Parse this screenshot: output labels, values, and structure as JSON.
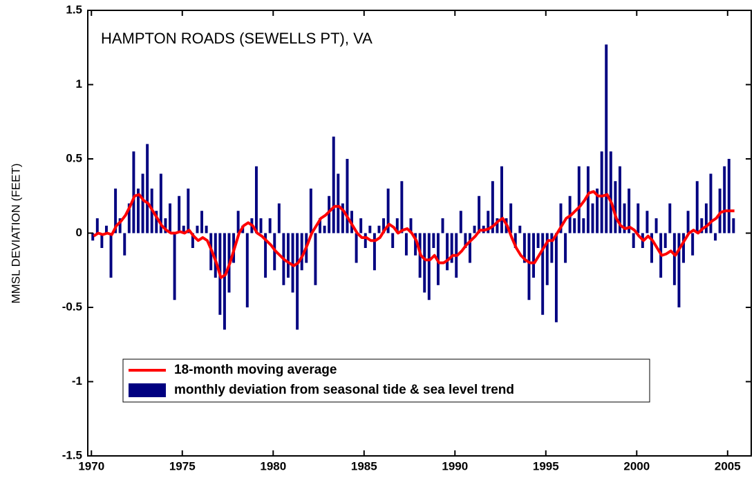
{
  "chart_data": {
    "type": "bar",
    "annotation": "HAMPTON ROADS (SEWELLS PT), VA",
    "y_label": "MMSL DEVIATION (FEET)",
    "x": [
      1970,
      1970.25,
      1970.5,
      1970.75,
      1971,
      1971.25,
      1971.5,
      1971.75,
      1972,
      1972.25,
      1972.5,
      1972.75,
      1973,
      1973.25,
      1973.5,
      1973.75,
      1974,
      1974.25,
      1974.5,
      1974.75,
      1975,
      1975.25,
      1975.5,
      1975.75,
      1976,
      1976.25,
      1976.5,
      1976.75,
      1977,
      1977.25,
      1977.5,
      1977.75,
      1978,
      1978.25,
      1978.5,
      1978.75,
      1979,
      1979.25,
      1979.5,
      1979.75,
      1980,
      1980.25,
      1980.5,
      1980.75,
      1981,
      1981.25,
      1981.5,
      1981.75,
      1982,
      1982.25,
      1982.5,
      1982.75,
      1983,
      1983.25,
      1983.5,
      1983.75,
      1984,
      1984.25,
      1984.5,
      1984.75,
      1985,
      1985.25,
      1985.5,
      1985.75,
      1986,
      1986.25,
      1986.5,
      1986.75,
      1987,
      1987.25,
      1987.5,
      1987.75,
      1988,
      1988.25,
      1988.5,
      1988.75,
      1989,
      1989.25,
      1989.5,
      1989.75,
      1990,
      1990.25,
      1990.5,
      1990.75,
      1991,
      1991.25,
      1991.5,
      1991.75,
      1992,
      1992.25,
      1992.5,
      1992.75,
      1993,
      1993.25,
      1993.5,
      1993.75,
      1994,
      1994.25,
      1994.5,
      1994.75,
      1995,
      1995.25,
      1995.5,
      1995.75,
      1996,
      1996.25,
      1996.5,
      1996.75,
      1997,
      1997.25,
      1997.5,
      1997.75,
      1998,
      1998.25,
      1998.5,
      1998.75,
      1999,
      1999.25,
      1999.5,
      1999.75,
      2000,
      2000.25,
      2000.5,
      2000.75,
      2001,
      2001.25,
      2001.5,
      2001.75,
      2002,
      2002.25,
      2002.5,
      2002.75,
      2003,
      2003.25,
      2003.5,
      2003.75,
      2004,
      2004.25,
      2004.5,
      2004.75,
      2005,
      2005.25
    ],
    "series": [
      {
        "name": "monthly deviation from seasonal tide & sea level trend",
        "type": "bar",
        "color": "#000080",
        "values": [
          -0.05,
          0.1,
          -0.1,
          0.05,
          -0.3,
          0.3,
          0.1,
          -0.15,
          0.2,
          0.55,
          0.3,
          0.4,
          0.6,
          0.3,
          0.15,
          0.4,
          0.1,
          0.2,
          -0.45,
          0.25,
          0.05,
          0.3,
          -0.1,
          0.05,
          0.15,
          0.05,
          -0.25,
          -0.3,
          -0.55,
          -0.65,
          -0.4,
          -0.2,
          0.15,
          0.05,
          -0.5,
          0.1,
          0.45,
          0.1,
          -0.3,
          0.1,
          -0.25,
          0.2,
          -0.35,
          -0.3,
          -0.4,
          -0.65,
          -0.25,
          -0.2,
          0.3,
          -0.35,
          0.1,
          0.05,
          0.25,
          0.65,
          0.4,
          0.2,
          0.5,
          0.15,
          -0.2,
          0.1,
          -0.1,
          0.05,
          -0.25,
          0.05,
          0.1,
          0.3,
          -0.1,
          0.1,
          0.35,
          -0.15,
          0.1,
          -0.15,
          -0.3,
          -0.4,
          -0.45,
          -0.1,
          -0.35,
          0.1,
          -0.25,
          -0.2,
          -0.3,
          0.15,
          -0.1,
          -0.2,
          0.05,
          0.25,
          0.05,
          0.15,
          0.35,
          0.1,
          0.45,
          0.1,
          0.2,
          -0.1,
          0.05,
          -0.2,
          -0.45,
          -0.3,
          -0.1,
          -0.55,
          -0.35,
          -0.2,
          -0.6,
          0.2,
          -0.2,
          0.25,
          0.1,
          0.45,
          0.1,
          0.45,
          0.2,
          0.3,
          0.55,
          1.27,
          0.55,
          0.35,
          0.45,
          0.2,
          0.3,
          -0.1,
          0.2,
          -0.1,
          0.15,
          -0.2,
          0.1,
          -0.3,
          -0.1,
          0.2,
          -0.35,
          -0.5,
          -0.2,
          0.15,
          -0.15,
          0.35,
          0.1,
          0.2,
          0.4,
          -0.05,
          0.3,
          0.45,
          0.5,
          0.1
        ]
      },
      {
        "name": "18-month moving average",
        "type": "line",
        "color": "#ff0000",
        "values": [
          -0.02,
          0.0,
          -0.01,
          0.0,
          -0.01,
          0.05,
          0.08,
          0.12,
          0.18,
          0.25,
          0.26,
          0.22,
          0.2,
          0.15,
          0.1,
          0.05,
          0.02,
          0.0,
          0.0,
          0.01,
          0.0,
          0.02,
          -0.02,
          -0.05,
          -0.03,
          -0.05,
          -0.12,
          -0.2,
          -0.3,
          -0.28,
          -0.2,
          -0.1,
          0.0,
          0.05,
          0.07,
          0.05,
          0.0,
          -0.02,
          -0.05,
          -0.08,
          -0.12,
          -0.15,
          -0.18,
          -0.2,
          -0.22,
          -0.2,
          -0.15,
          -0.08,
          0.0,
          0.05,
          0.1,
          0.12,
          0.15,
          0.18,
          0.18,
          0.15,
          0.1,
          0.05,
          0.0,
          -0.03,
          -0.03,
          -0.05,
          -0.05,
          -0.03,
          0.02,
          0.06,
          0.04,
          0.0,
          0.02,
          0.03,
          0.0,
          -0.05,
          -0.15,
          -0.18,
          -0.18,
          -0.15,
          -0.2,
          -0.2,
          -0.18,
          -0.15,
          -0.15,
          -0.12,
          -0.08,
          -0.05,
          -0.02,
          0.02,
          0.02,
          0.03,
          0.05,
          0.08,
          0.1,
          0.05,
          -0.03,
          -0.1,
          -0.15,
          -0.18,
          -0.2,
          -0.2,
          -0.15,
          -0.1,
          -0.05,
          -0.05,
          0.0,
          0.05,
          0.1,
          0.12,
          0.15,
          0.18,
          0.22,
          0.27,
          0.28,
          0.25,
          0.25,
          0.26,
          0.2,
          0.1,
          0.05,
          0.03,
          0.04,
          0.02,
          -0.02,
          -0.05,
          -0.02,
          -0.05,
          -0.1,
          -0.15,
          -0.14,
          -0.12,
          -0.15,
          -0.1,
          -0.05,
          0.0,
          0.02,
          0.0,
          0.03,
          0.05,
          0.08,
          0.1,
          0.14,
          0.15,
          0.15,
          0.15
        ]
      }
    ],
    "xlim": [
      1969.8,
      2006.3
    ],
    "xticks": [
      1970,
      1975,
      1980,
      1985,
      1990,
      1995,
      2000,
      2005
    ],
    "ylim": [
      -1.5,
      1.5
    ],
    "yticks": [
      -1.5,
      -1,
      -0.5,
      0,
      0.5,
      1,
      1.5
    ],
    "legend": "lower-left"
  }
}
